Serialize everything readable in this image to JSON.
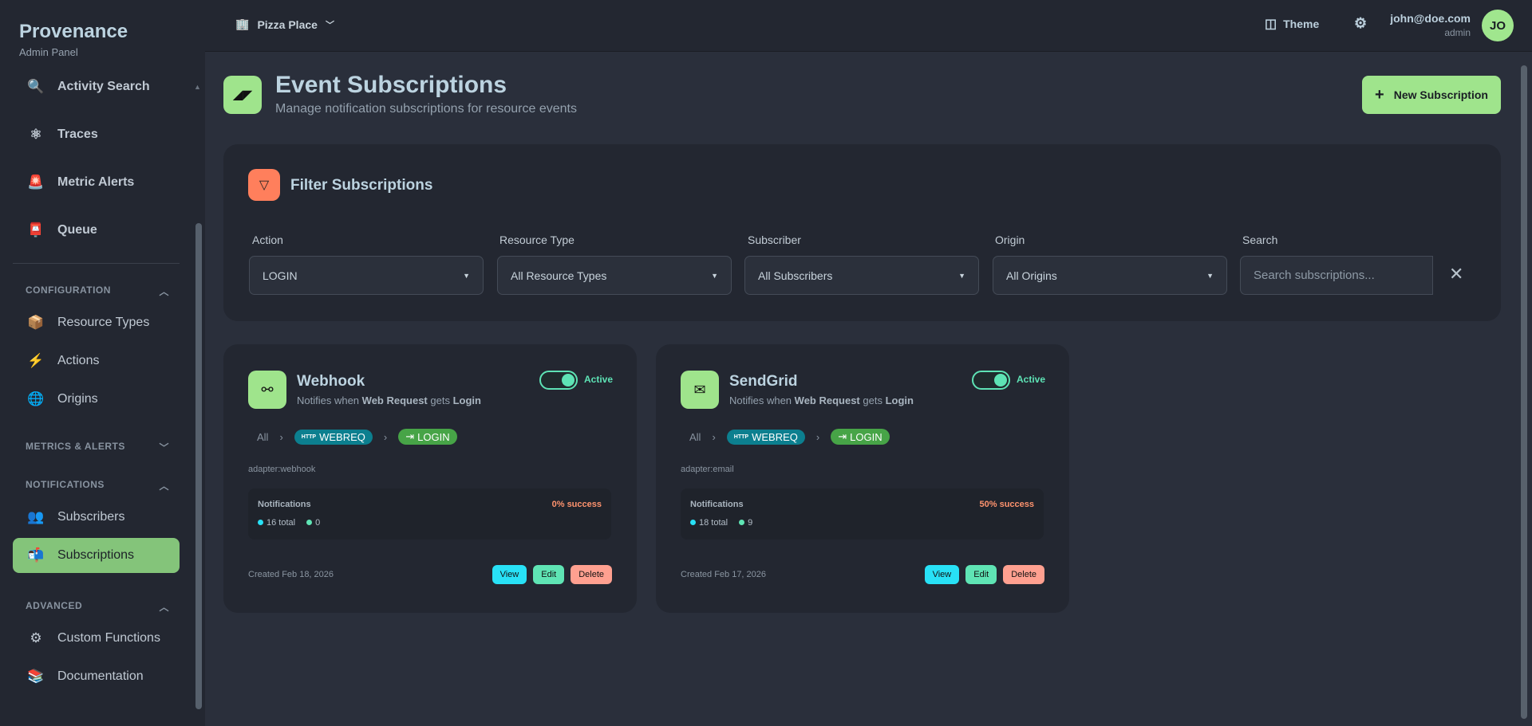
{
  "sidebar": {
    "brand": "Provenance",
    "subtitle": "Admin Panel",
    "items": [
      {
        "label": "Activity Search",
        "icon": "🔍"
      },
      {
        "label": "Traces",
        "icon": "⚛"
      },
      {
        "label": "Metric Alerts",
        "icon": "🚨"
      },
      {
        "label": "Queue",
        "icon": "📮"
      }
    ],
    "sections": {
      "configuration": "CONFIGURATION",
      "metrics": "METRICS & ALERTS",
      "notifications": "NOTIFICATIONS",
      "advanced": "ADVANCED"
    },
    "config_items": [
      {
        "label": "Resource Types",
        "icon": "📦"
      },
      {
        "label": "Actions",
        "icon": "⚡"
      },
      {
        "label": "Origins",
        "icon": "🌐"
      }
    ],
    "notif_items": [
      {
        "label": "Subscribers",
        "icon": "👥"
      },
      {
        "label": "Subscriptions",
        "icon": "📬"
      }
    ],
    "adv_items": [
      {
        "label": "Custom Functions",
        "icon": "⚙"
      },
      {
        "label": "Documentation",
        "icon": "📚"
      }
    ]
  },
  "topbar": {
    "org": "Pizza Place",
    "theme": "Theme",
    "email": "john@doe.com",
    "role": "admin",
    "avatar": "JO"
  },
  "page": {
    "title": "Event Subscriptions",
    "subtitle": "Manage notification subscriptions for resource events",
    "new_button": "New Subscription"
  },
  "filters": {
    "title": "Filter Subscriptions",
    "action": {
      "label": "Action",
      "value": "LOGIN"
    },
    "resource_type": {
      "label": "Resource Type",
      "value": "All Resource Types"
    },
    "subscriber": {
      "label": "Subscriber",
      "value": "All Subscribers"
    },
    "origin": {
      "label": "Origin",
      "value": "All Origins"
    },
    "search": {
      "label": "Search",
      "placeholder": "Search subscriptions...",
      "value": ""
    }
  },
  "subscriptions": [
    {
      "name": "Webhook",
      "desc_pre": "Notifies when ",
      "resource": "Web Request",
      "desc_mid": " gets ",
      "action": "Login",
      "status": "Active",
      "active": true,
      "crumb_all": "All",
      "resource_code": "WEBREQ",
      "action_code": "LOGIN",
      "adapter": "adapter:webhook",
      "notif_label": "Notifications",
      "success": "0% success",
      "total": "16 total",
      "delivered": "0",
      "created": "Created Feb 18, 2026",
      "icon": "webhook-icon"
    },
    {
      "name": "SendGrid",
      "desc_pre": "Notifies when ",
      "resource": "Web Request",
      "desc_mid": " gets ",
      "action": "Login",
      "status": "Active",
      "active": true,
      "crumb_all": "All",
      "resource_code": "WEBREQ",
      "action_code": "LOGIN",
      "adapter": "adapter:email",
      "notif_label": "Notifications",
      "success": "50% success",
      "total": "18 total",
      "delivered": "9",
      "created": "Created Feb 17, 2026",
      "icon": "envelope-icon"
    }
  ],
  "buttons": {
    "view": "View",
    "edit": "Edit",
    "delete": "Delete"
  },
  "colors": {
    "accent": "#9fe48c",
    "filter_icon": "#ff7f5c",
    "active": "#5ee3b5",
    "view": "#28e1f6",
    "edit": "#5fe4b4",
    "delete": "#ffa090"
  }
}
